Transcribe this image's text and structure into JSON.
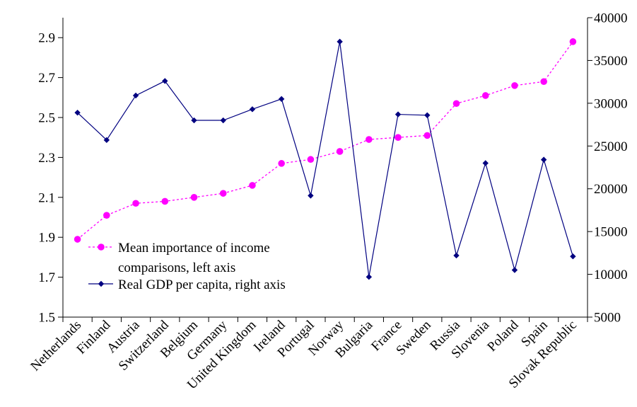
{
  "chart_data": {
    "type": "line",
    "categories": [
      "Netherlands",
      "Finland",
      "Austria",
      "Switzerland",
      "Belgium",
      "Germany",
      "United Kingdom",
      "Ireland",
      "Portugal",
      "Norway",
      "Bulgaria",
      "France",
      "Sweden",
      "Russia",
      "Slovenia",
      "Poland",
      "Spain",
      "Slovak Republic"
    ],
    "series": [
      {
        "name": "Mean importance of income comparisons, left axis",
        "legend_lines": [
          "Mean importance of income",
          "comparisons, left axis"
        ],
        "axis": "left",
        "color": "#ff00ff",
        "line_style": "dotted",
        "marker": "circle",
        "values": [
          1.89,
          2.01,
          2.07,
          2.08,
          2.1,
          2.12,
          2.16,
          2.27,
          2.29,
          2.33,
          2.39,
          2.4,
          2.41,
          2.57,
          2.61,
          2.66,
          2.68,
          2.88
        ]
      },
      {
        "name": "Real GDP per capita, right axis",
        "legend_lines": [
          "Real GDP per capita, right axis"
        ],
        "axis": "right",
        "color": "#000080",
        "line_style": "solid",
        "marker": "diamond",
        "values": [
          28900,
          25700,
          30900,
          32600,
          28000,
          28000,
          29300,
          30500,
          19200,
          37200,
          9700,
          28700,
          28600,
          12200,
          23000,
          10500,
          23400,
          12100
        ]
      }
    ],
    "y_left": {
      "ylim": [
        1.5,
        3.0
      ],
      "ticks": [
        "1.5",
        "1.7",
        "1.9",
        "2.1",
        "2.3",
        "2.5",
        "2.7",
        "2.9"
      ]
    },
    "y_right": {
      "ylim": [
        5000,
        40000
      ],
      "ticks": [
        "5000",
        "10000",
        "15000",
        "20000",
        "25000",
        "30000",
        "35000",
        "40000"
      ]
    },
    "title": "",
    "xlabel": "",
    "grid": false,
    "legend_position": "lower-left"
  }
}
